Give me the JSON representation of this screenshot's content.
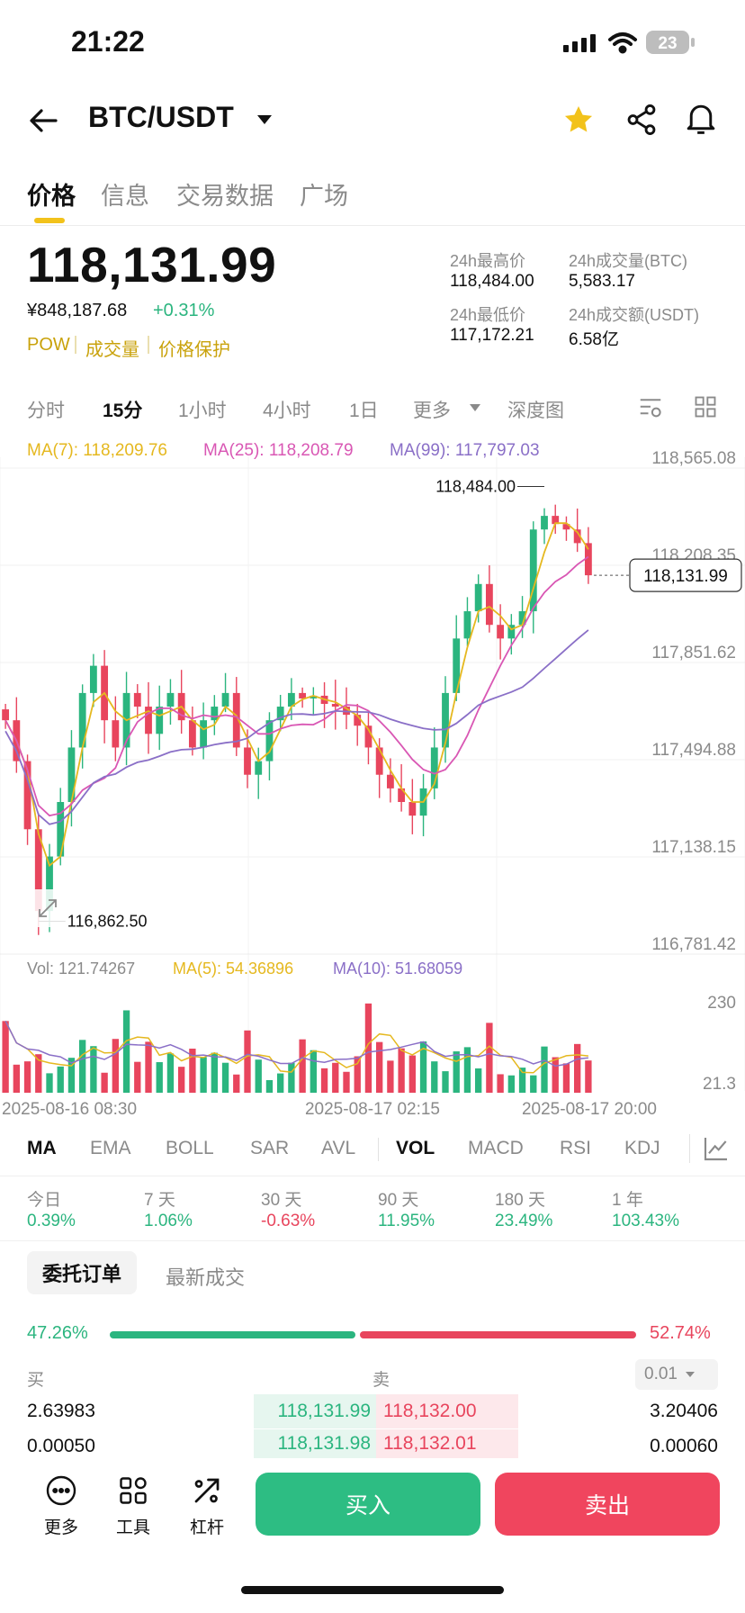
{
  "status": {
    "time": "21:22",
    "battery": "23"
  },
  "header": {
    "pair": "BTC/USDT"
  },
  "tabs": [
    "价格",
    "信息",
    "交易数据",
    "广场"
  ],
  "price": {
    "last": "118,131.99",
    "cny": "¥848,187.68",
    "change": "+0.31%",
    "tags": [
      "POW",
      "成交量",
      "价格保护"
    ]
  },
  "stats": {
    "high_label": "24h最高价",
    "high": "118,484.00",
    "vol_btc_label": "24h成交量(BTC)",
    "vol_btc": "5,583.17",
    "low_label": "24h最低价",
    "low": "117,172.21",
    "vol_usdt_label": "24h成交额(USDT)",
    "vol_usdt": "6.58亿"
  },
  "intervals": [
    "分时",
    "15分",
    "1小时",
    "4小时",
    "1日",
    "更多",
    "深度图"
  ],
  "ma_legend": {
    "ma7": "MA(7): 118,209.76",
    "ma25": "MA(25): 118,208.79",
    "ma99": "MA(99): 117,797.03"
  },
  "colors": {
    "up": "#2bb57f",
    "down": "#e8455d",
    "ma7": "#e5b81f",
    "ma25": "#d957b4",
    "ma99": "#8a6fc7",
    "accent": "#f2c21b"
  },
  "chart_data": {
    "type": "candlestick",
    "y_ticks": [
      "118,565.08",
      "118,208.35",
      "117,851.62",
      "117,494.88",
      "117,138.15",
      "116,781.42"
    ],
    "ylim": [
      116781.42,
      118565.08
    ],
    "current_price": "118,131.99",
    "max_marker": "118,484.00",
    "min_marker": "116,862.50",
    "volume": {
      "legend": "Vol: 121.74267",
      "ma5": "MA(5): 54.36896",
      "ma10": "MA(10): 51.68059",
      "y_ticks": [
        "230",
        "21.3"
      ]
    },
    "x_labels": [
      "2025-08-16 08:30",
      "2025-08-17 02:15",
      "2025-08-17 20:00"
    ],
    "closes": [
      117600,
      117450,
      117200,
      116900,
      117100,
      117300,
      117500,
      117700,
      117800,
      117600,
      117500,
      117700,
      117650,
      117550,
      117650,
      117700,
      117600,
      117500,
      117600,
      117650,
      117700,
      117500,
      117400,
      117450,
      117600,
      117650,
      117700,
      117680,
      117690,
      117660,
      117650,
      117620,
      117580,
      117500,
      117400,
      117350,
      117300,
      117250,
      117350,
      117500,
      117700,
      117900,
      118000,
      118100,
      117950,
      117900,
      117950,
      118000,
      118300,
      118350,
      118320,
      118300,
      118250,
      118131.99
    ]
  },
  "indicators": [
    "MA",
    "EMA",
    "BOLL",
    "SAR",
    "AVL",
    "VOL",
    "MACD",
    "RSI",
    "KDJ"
  ],
  "performance": [
    {
      "label": "今日",
      "value": "0.39%"
    },
    {
      "label": "7 天",
      "value": "1.06%"
    },
    {
      "label": "30 天",
      "value": "-0.63%"
    },
    {
      "label": "90 天",
      "value": "11.95%"
    },
    {
      "label": "180 天",
      "value": "23.49%"
    },
    {
      "label": "1 年",
      "value": "103.43%"
    }
  ],
  "orderbook": {
    "tab_orders": "委托订单",
    "tab_trades": "最新成交",
    "buy_pct": "47.26%",
    "sell_pct": "52.74%",
    "buy_label": "买",
    "sell_label": "卖",
    "depth": "0.01",
    "rows": [
      {
        "bid_qty": "2.63983",
        "bid": "118,131.99",
        "ask": "118,132.00",
        "ask_qty": "3.20406"
      },
      {
        "bid_qty": "0.00050",
        "bid": "118,131.98",
        "ask": "118,132.01",
        "ask_qty": "0.00060"
      }
    ]
  },
  "bottom": {
    "more": "更多",
    "tools": "工具",
    "leverage": "杠杆",
    "buy": "买入",
    "sell": "卖出"
  }
}
